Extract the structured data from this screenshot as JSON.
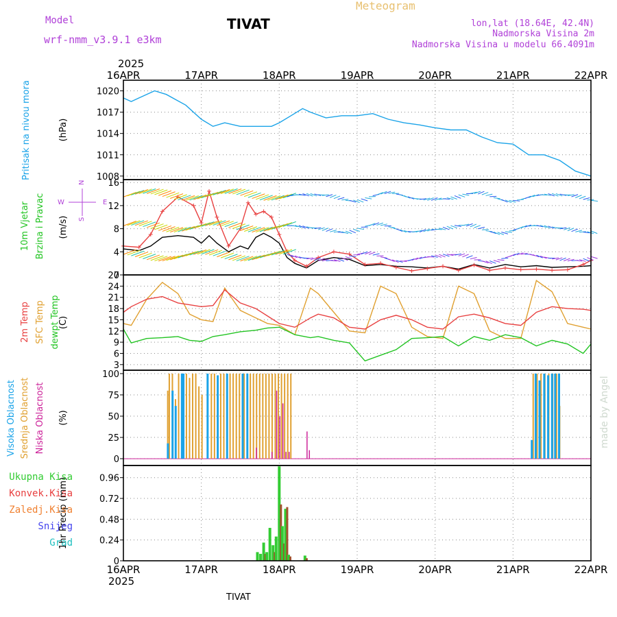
{
  "header": {
    "model_label": "Model",
    "model_name": "wrf-nmm_v3.9.1 e3km",
    "station": "TIVAT",
    "meteogram": "Meteogram",
    "lonlat": "lon,lat (18.64E, 42.4N)",
    "elevation": "Nadmorska Visina 2m",
    "model_elevation": "Nadmorska Visina u modelu 66.4091m"
  },
  "footer_station": "TIVAT",
  "watermark": "made by Angel",
  "colors": {
    "pressure": "#1aa3e8",
    "temp2m": "#e84040",
    "sfctemp": "#e0a030",
    "dewpt": "#22c422",
    "high_cloud": "#1aa3e8",
    "mid_cloud": "#e0a030",
    "low_cloud": "#cc2299",
    "precip_total": "#33cc33",
    "precip_conv": "#e84040",
    "purple": "#b040d8"
  },
  "chart_data": [
    {
      "type": "line",
      "id": "pressure",
      "ylabel_left": "Pritisak na nivou mora",
      "ylabel_unit": "(hPa)",
      "year": "2025",
      "categories": [
        "16APR",
        "17APR",
        "18APR",
        "19APR",
        "20APR",
        "21APR",
        "22APR"
      ],
      "ylim": [
        1007.5,
        1021.5
      ],
      "yticks": [
        "1020",
        "1017",
        "1014",
        "1011",
        "1008"
      ],
      "ytick_values": [
        1020,
        1017,
        1014,
        1011,
        1008
      ],
      "x": [
        0,
        0.1,
        0.2,
        0.4,
        0.55,
        0.8,
        1.0,
        1.15,
        1.3,
        1.5,
        1.7,
        1.9,
        2.0,
        2.15,
        2.3,
        2.4,
        2.6,
        2.8,
        3.0,
        3.2,
        3.4,
        3.6,
        3.8,
        4.0,
        4.2,
        4.4,
        4.6,
        4.8,
        5.0,
        5.2,
        5.4,
        5.6,
        5.8,
        6.0
      ],
      "series": [
        {
          "name": "SLP",
          "values": [
            1019,
            1018.5,
            1019,
            1020,
            1019.5,
            1018,
            1016,
            1015,
            1015.5,
            1015,
            1015,
            1015,
            1015.5,
            1016.5,
            1017.5,
            1017,
            1016.2,
            1016.5,
            1016.5,
            1016.8,
            1016,
            1015.5,
            1015.2,
            1014.8,
            1014.5,
            1014.5,
            1013.5,
            1012.7,
            1012.5,
            1011,
            1011,
            1010.2,
            1008.7,
            1008
          ]
        }
      ]
    },
    {
      "type": "line",
      "id": "wind",
      "ylabel_left": [
        "10m Vjetar",
        "Brzina i Pravac"
      ],
      "ylabel_unit": "(m/s)",
      "compass": [
        "N",
        "W",
        "E",
        "S"
      ],
      "ylim": [
        0,
        16.5
      ],
      "yticks": [
        "16",
        "12",
        "8",
        "4",
        "0"
      ],
      "ytick_values": [
        16,
        12,
        8,
        4,
        0
      ],
      "x": [
        0,
        0.2,
        0.35,
        0.5,
        0.7,
        0.9,
        1.0,
        1.1,
        1.2,
        1.35,
        1.5,
        1.6,
        1.7,
        1.8,
        1.9,
        2.0,
        2.1,
        2.2,
        2.35,
        2.5,
        2.7,
        2.9,
        3.1,
        3.3,
        3.5,
        3.7,
        3.9,
        4.1,
        4.3,
        4.5,
        4.7,
        4.9,
        5.1,
        5.3,
        5.5,
        5.7,
        5.9,
        6.0
      ],
      "series": [
        {
          "name": "Brzina",
          "values": [
            4.5,
            4.2,
            5.0,
            6.5,
            6.8,
            6.5,
            5.5,
            6.8,
            5.5,
            4.0,
            5.0,
            4.5,
            6.5,
            7.2,
            6.5,
            5.5,
            3.0,
            2.0,
            1.2,
            2.5,
            3.0,
            2.7,
            1.6,
            1.8,
            1.5,
            1.4,
            1.2,
            1.5,
            1.0,
            1.8,
            1.2,
            1.8,
            1.4,
            1.6,
            1.3,
            1.4,
            1.5,
            1.6
          ]
        },
        {
          "name": "Udari",
          "values": [
            5.0,
            4.8,
            7.0,
            11.0,
            13.5,
            12.0,
            9.0,
            14.5,
            10.0,
            5.0,
            8.0,
            12.5,
            10.5,
            11.0,
            10.0,
            7.0,
            4.0,
            2.5,
            1.5,
            3.0,
            4.0,
            3.6,
            1.8,
            2.0,
            1.3,
            0.7,
            1.1,
            1.5,
            0.8,
            1.7,
            0.8,
            1.2,
            0.9,
            1.0,
            0.8,
            0.9,
            1.8,
            2.5
          ]
        }
      ]
    },
    {
      "type": "line",
      "id": "temperature",
      "ylabel_left": [
        "2m Temp",
        "SFC Temp",
        "dewpt Temp"
      ],
      "ylabel_unit": "(C)",
      "ylim": [
        1.5,
        27
      ],
      "yticks": [
        "27",
        "24",
        "21",
        "18",
        "15",
        "12",
        "9",
        "6",
        "3"
      ],
      "ytick_values": [
        27,
        24,
        21,
        18,
        15,
        12,
        9,
        6,
        3
      ],
      "x": [
        0,
        0.1,
        0.3,
        0.5,
        0.7,
        0.85,
        1.0,
        1.15,
        1.3,
        1.5,
        1.7,
        1.85,
        2.0,
        2.2,
        2.4,
        2.5,
        2.7,
        2.9,
        3.1,
        3.3,
        3.5,
        3.7,
        3.9,
        4.1,
        4.3,
        4.5,
        4.7,
        4.9,
        5.1,
        5.3,
        5.5,
        5.7,
        5.9,
        6.0
      ],
      "series": [
        {
          "name": "2m Temp",
          "values": [
            17,
            18.5,
            20.5,
            21.2,
            19.5,
            19.0,
            18.5,
            18.8,
            23,
            19.5,
            18.0,
            16.0,
            14.0,
            13.0,
            15.5,
            16.5,
            15.5,
            13.0,
            12.5,
            15.0,
            16.2,
            15.0,
            13.0,
            12.5,
            15.8,
            16.5,
            15.5,
            14.0,
            13.5,
            17.0,
            18.5,
            18.0,
            17.8,
            17.5
          ]
        },
        {
          "name": "SFC Temp",
          "values": [
            14,
            13.5,
            20.5,
            25.0,
            22.0,
            16.5,
            15.0,
            14.5,
            23.5,
            17.5,
            15.5,
            14.0,
            13.5,
            11.0,
            23.5,
            22.0,
            17.0,
            12.0,
            11.5,
            24.0,
            22.0,
            13.0,
            10.5,
            10.0,
            24.0,
            22.0,
            12.0,
            10.0,
            10.0,
            25.5,
            22.5,
            14.0,
            13.0,
            12.5
          ]
        },
        {
          "name": "dewpt Temp",
          "values": [
            12.5,
            8.8,
            10.0,
            10.2,
            10.5,
            9.5,
            9.2,
            10.5,
            11.0,
            11.8,
            12.2,
            12.8,
            13.0,
            11.0,
            10.2,
            10.5,
            9.5,
            8.8,
            4.0,
            5.5,
            7.0,
            10.0,
            10.2,
            10.5,
            8.0,
            10.5,
            9.5,
            11.0,
            10.2,
            8.0,
            9.5,
            8.5,
            6.0,
            8.5
          ]
        }
      ]
    },
    {
      "type": "bar",
      "id": "clouds",
      "ylabel_left": [
        "Visoka Oblacnost",
        "Srednja Oblacnost",
        "Niska Oblacnost"
      ],
      "ylabel_unit": "(%)",
      "ylim": [
        -8,
        104
      ],
      "yticks": [
        "100",
        "75",
        "50",
        "25",
        "0"
      ],
      "ytick_values": [
        100,
        75,
        50,
        25,
        0
      ],
      "high_times": [
        0.54,
        0.6,
        0.64,
        0.72,
        0.74,
        1.05,
        1.18,
        1.3,
        1.5,
        1.56,
        5.21,
        5.26,
        5.31,
        5.37,
        5.42,
        5.47,
        5.51,
        5.56
      ],
      "high_values": [
        18,
        80,
        62,
        100,
        100,
        100,
        98,
        100,
        100,
        100,
        22,
        100,
        92,
        100,
        98,
        100,
        100,
        100
      ],
      "mid_times": [
        0.56,
        0.58,
        0.62,
        0.66,
        0.7,
        0.76,
        0.8,
        0.84,
        0.88,
        0.92,
        0.96,
        1.0,
        1.12,
        1.16,
        1.2,
        1.24,
        1.28,
        1.32,
        1.36,
        1.4,
        1.44,
        1.48,
        1.52,
        1.54,
        1.58,
        1.62,
        1.66,
        1.7,
        1.74,
        1.78,
        1.82,
        1.86,
        1.9,
        1.94,
        1.98,
        2.02,
        2.06,
        2.1,
        2.14,
        5.25,
        5.3,
        5.35,
        5.4,
        5.45,
        5.5,
        5.55,
        5.59
      ],
      "mid_values": [
        80,
        100,
        100,
        70,
        100,
        100,
        100,
        95,
        100,
        100,
        85,
        75,
        100,
        100,
        85,
        100,
        100,
        100,
        100,
        100,
        100,
        100,
        100,
        100,
        100,
        100,
        100,
        100,
        100,
        100,
        100,
        100,
        100,
        100,
        100,
        100,
        100,
        100,
        100,
        100,
        100,
        100,
        100,
        100,
        100,
        100,
        62
      ],
      "low_times": [
        1.7,
        1.9,
        1.96,
        2.0,
        2.04,
        2.08,
        2.12,
        2.35,
        2.38
      ],
      "low_values": [
        13,
        8,
        80,
        50,
        65,
        8,
        8,
        32,
        10
      ]
    },
    {
      "type": "bar",
      "id": "precip",
      "ylabel_left": [
        "Ukupna Kisa",
        "Konvek.Kisa",
        "Zaledj.Kisa",
        "Snijeg",
        "Grad"
      ],
      "ylabel_unit": "1hr Precip (mm)",
      "ylim": [
        0,
        1.1
      ],
      "yticks": [
        "0.96",
        "0.72",
        "0.48",
        "0.24",
        "0"
      ],
      "ytick_values": [
        0.96,
        0.72,
        0.48,
        0.24,
        0
      ],
      "times": [
        1.72,
        1.76,
        1.8,
        1.84,
        1.88,
        1.92,
        1.96,
        2.0,
        2.04,
        2.08,
        2.12,
        2.33
      ],
      "total": [
        0.1,
        0.08,
        0.21,
        0.1,
        0.38,
        0.18,
        0.28,
        1.09,
        0.4,
        0.6,
        0.07,
        0.06
      ],
      "convective": [
        0.0,
        0.0,
        0.08,
        0.0,
        0.0,
        0.1,
        0.0,
        0.65,
        0.2,
        0.62,
        0.05,
        0.03
      ],
      "categories_bottom": [
        "16APR",
        "17APR",
        "18APR",
        "19APR",
        "20APR",
        "21APR",
        "22APR"
      ],
      "year_bottom": "2025"
    }
  ]
}
